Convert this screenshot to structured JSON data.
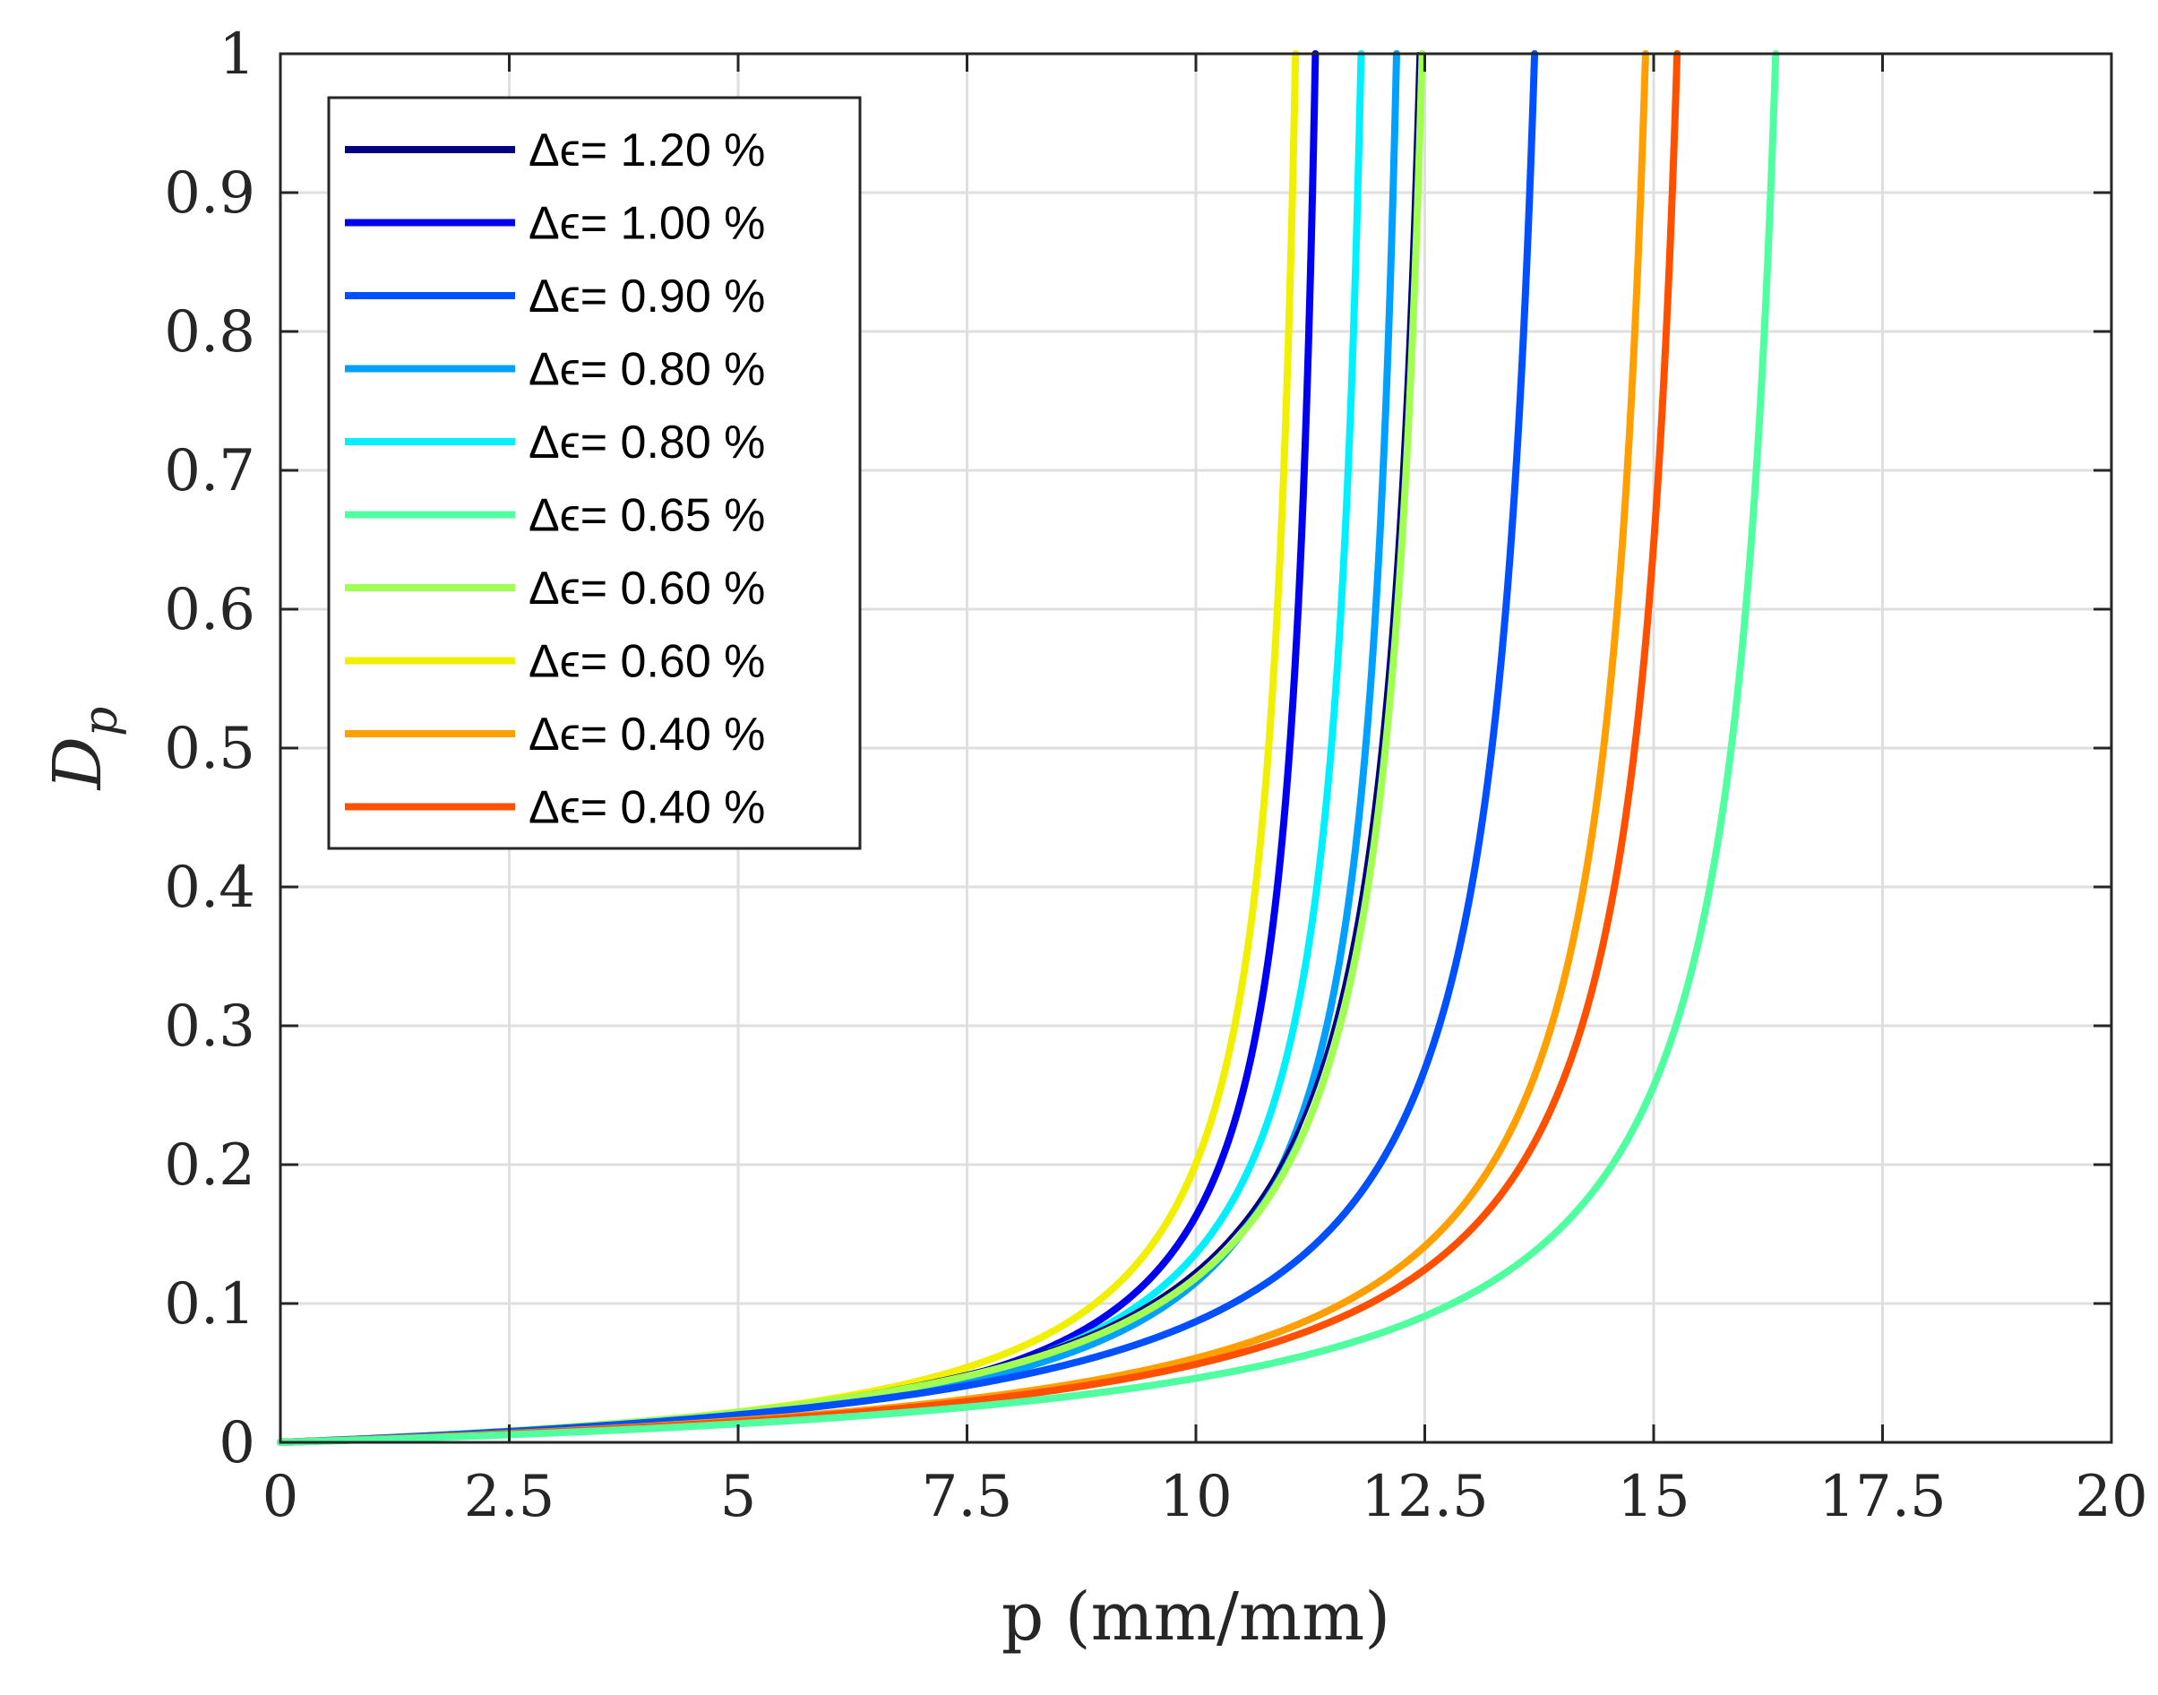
{
  "chart_data": {
    "type": "line",
    "title": "",
    "xlabel": "p (mm/mm)",
    "ylabel_main": "D",
    "ylabel_sub": "p",
    "xlim": [
      0,
      20
    ],
    "ylim": [
      0,
      1
    ],
    "xticks": [
      0,
      2.5,
      5,
      7.5,
      10,
      12.5,
      15,
      17.5,
      20
    ],
    "xtick_labels": [
      "0",
      "2.5",
      "5",
      "7.5",
      "10",
      "12.5",
      "15",
      "17.5",
      "20"
    ],
    "yticks": [
      0,
      0.1,
      0.2,
      0.3,
      0.4,
      0.5,
      0.6,
      0.7,
      0.8,
      0.9,
      1
    ],
    "ytick_labels": [
      "0",
      "0.1",
      "0.2",
      "0.3",
      "0.4",
      "0.5",
      "0.6",
      "0.7",
      "0.8",
      "0.9",
      "1"
    ],
    "grid": true,
    "legend_position": "top-left",
    "series": [
      {
        "name": "Δϵ=  1.20 %",
        "color": "#000080",
        "asymptote": 12.87,
        "d10": 9.5
      },
      {
        "name": "Δϵ=  1.00 %",
        "color": "#0000F0",
        "asymptote": 11.6,
        "d10": 9.2
      },
      {
        "name": "Δϵ=  0.90 %",
        "color": "#0050FF",
        "asymptote": 14.2,
        "d10": 10.4
      },
      {
        "name": "Δϵ=  0.80 %",
        "color": "#00A0FF",
        "asymptote": 12.55,
        "d10": 9.7
      },
      {
        "name": "Δϵ=  0.80 %",
        "color": "#00F0FF",
        "asymptote": 12.15,
        "d10": 9.4
      },
      {
        "name": "Δϵ=  0.65 %",
        "color": "#50FFA0",
        "asymptote": 16.85,
        "d10": 12.8
      },
      {
        "name": "Δϵ=  0.60 %",
        "color": "#A0FF50",
        "asymptote": 12.9,
        "d10": 9.6
      },
      {
        "name": "Δϵ=  0.60 %",
        "color": "#F0F000",
        "asymptote": 11.4,
        "d10": 8.9
      },
      {
        "name": "Δϵ=  0.40 %",
        "color": "#FFA000",
        "asymptote": 15.4,
        "d10": 11.6
      },
      {
        "name": "Δϵ=  0.40 %",
        "color": "#FF5000",
        "asymptote": 15.75,
        "d10": 11.9
      }
    ]
  }
}
